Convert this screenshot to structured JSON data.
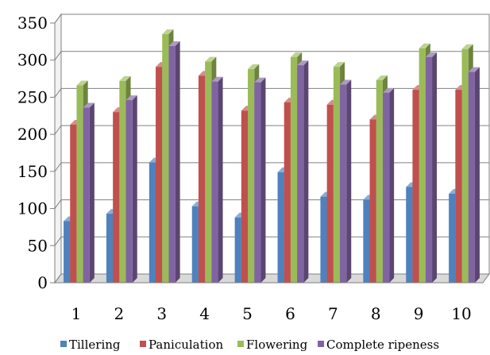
{
  "chart_data": {
    "type": "bar",
    "categories": [
      "1",
      "2",
      "3",
      "4",
      "5",
      "6",
      "7",
      "8",
      "9",
      "10"
    ],
    "series": [
      {
        "name": "Tillering",
        "color": "#4F81BD",
        "values": [
          83,
          93,
          162,
          103,
          88,
          149,
          116,
          112,
          129,
          120
        ]
      },
      {
        "name": "Paniculation",
        "color": "#C0504D",
        "values": [
          213,
          230,
          291,
          279,
          232,
          243,
          240,
          220,
          260,
          260
        ]
      },
      {
        "name": "Flowering",
        "color": "#9BBB59",
        "values": [
          266,
          272,
          335,
          298,
          288,
          304,
          291,
          273,
          316,
          315
        ]
      },
      {
        "name": "Complete ripeness",
        "color": "#8064A2",
        "values": [
          236,
          246,
          319,
          271,
          270,
          293,
          267,
          256,
          304,
          284
        ]
      }
    ],
    "ylim": [
      0,
      350
    ],
    "yticks": [
      "0",
      "50",
      "100",
      "150",
      "200",
      "250",
      "300",
      "350"
    ],
    "grid": true,
    "legend_position": "bottom",
    "style": "3d-clustered-column"
  }
}
